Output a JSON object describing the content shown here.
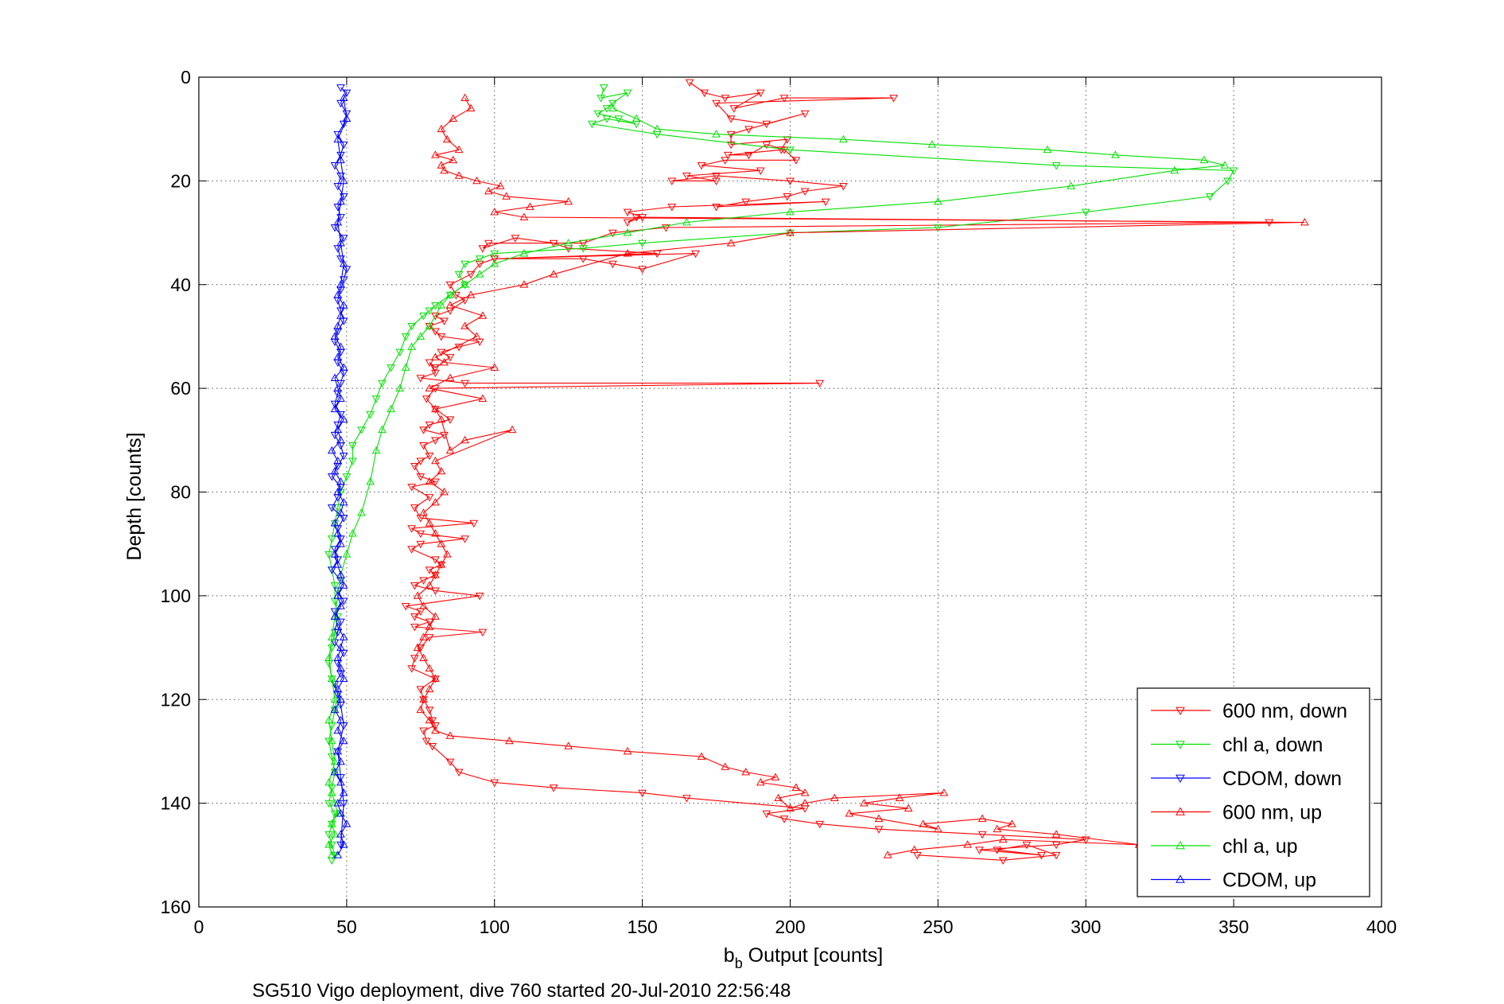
{
  "chart_data": {
    "type": "line",
    "xlabel_main": "b",
    "xlabel_sub": "b",
    "xlabel_rest": " Output [counts]",
    "ylabel": "Depth [counts]",
    "caption": "SG510 Vigo deployment, dive 760 started 20-Jul-2010 22:56:48",
    "xlim": [
      0,
      400
    ],
    "ylim": [
      0,
      160
    ],
    "y_reversed": true,
    "grid": true,
    "legend_position": "bottom-right",
    "x_ticks": [
      "0",
      "50",
      "100",
      "150",
      "200",
      "250",
      "300",
      "350",
      "400"
    ],
    "y_ticks": [
      "0",
      "20",
      "40",
      "60",
      "80",
      "100",
      "120",
      "140",
      "160"
    ],
    "series": [
      {
        "name": "600 nm, down",
        "color": "#ff0000",
        "marker": "triangle-down",
        "x": [
          166,
          171,
          178,
          190,
          181,
          198,
          235,
          175,
          180,
          192,
          205,
          186,
          180,
          180,
          199,
          197,
          179,
          186,
          192,
          198,
          202,
          178,
          170,
          190,
          165,
          175,
          160,
          175,
          200,
          218,
          205,
          199,
          185,
          175,
          212,
          160,
          145,
          150,
          145,
          148,
          362,
          158,
          140,
          130,
          98,
          96,
          107,
          120,
          125,
          155,
          100,
          130,
          140,
          150,
          168,
          100,
          95,
          92,
          85,
          87,
          90,
          85,
          80,
          83,
          78,
          80,
          82,
          95,
          88,
          82,
          85,
          80,
          78,
          80,
          75,
          90,
          210,
          80,
          77,
          80,
          85,
          78,
          76,
          83,
          80,
          76,
          78,
          75,
          73,
          75,
          80,
          72,
          78,
          73,
          75,
          93,
          72,
          75,
          90,
          75,
          72,
          80,
          82,
          78,
          80,
          76,
          73,
          80,
          95,
          70,
          75,
          73,
          78,
          73,
          96,
          78,
          75,
          73,
          72,
          80,
          75,
          76,
          78,
          79,
          80,
          76,
          77,
          79,
          85,
          88,
          100,
          120,
          150,
          165,
          205,
          192,
          198,
          210,
          230,
          265,
          300,
          290,
          264,
          285,
          270,
          280,
          290,
          272,
          243
        ],
        "y": [
          1,
          3,
          4,
          3,
          6,
          4,
          4,
          5,
          8,
          9,
          7,
          10,
          11,
          13,
          12,
          14,
          15,
          15,
          13,
          14,
          16,
          16,
          17,
          18,
          19,
          20,
          20,
          19,
          20,
          21,
          22,
          23,
          24,
          25,
          24,
          25,
          26,
          27,
          28,
          27,
          28,
          29,
          30,
          32,
          32,
          33,
          31,
          32,
          33,
          34,
          35,
          35,
          36,
          37,
          34,
          35,
          36,
          38,
          40,
          42,
          43,
          45,
          46,
          47,
          48,
          49,
          50,
          51,
          52,
          53,
          54,
          56,
          55,
          57,
          58,
          59,
          59,
          60,
          62,
          64,
          66,
          67,
          68,
          69,
          70,
          71,
          73,
          74,
          75,
          77,
          78,
          79,
          81,
          83,
          85,
          86,
          87,
          88,
          89,
          90,
          91,
          93,
          94,
          95,
          96,
          97,
          98,
          99,
          100,
          102,
          103,
          104,
          105,
          106,
          107,
          108,
          110,
          112,
          114,
          116,
          118,
          120,
          122,
          124,
          125,
          126,
          128,
          129,
          132,
          134,
          136,
          137,
          138,
          139,
          141,
          142,
          143,
          144,
          145,
          146,
          147,
          148,
          149,
          150,
          149,
          148,
          150,
          151,
          150
        ]
      },
      {
        "name": "chl a, down",
        "color": "#00e000",
        "marker": "triangle-down",
        "x": [
          137,
          136,
          145,
          140,
          138,
          135,
          142,
          148,
          138,
          133,
          155,
          200,
          290,
          350,
          348,
          342,
          300,
          250,
          200,
          150,
          130,
          100,
          95,
          90,
          88,
          90,
          85,
          80,
          78,
          76,
          72,
          70,
          68,
          65,
          62,
          60,
          58,
          55,
          52,
          52,
          50,
          48,
          47,
          46,
          45,
          44,
          45,
          46,
          46,
          47,
          46,
          45,
          44,
          45,
          47,
          46,
          45,
          44,
          45,
          46,
          45,
          44,
          46,
          45,
          44,
          45,
          46,
          45
        ],
        "y": [
          2,
          4,
          3,
          5,
          6,
          7,
          8,
          9,
          8,
          9,
          11,
          14,
          17,
          18,
          20,
          23,
          26,
          29,
          30,
          32,
          33,
          34,
          35,
          36,
          38,
          40,
          42,
          44,
          45,
          46,
          48,
          50,
          53,
          56,
          59,
          62,
          65,
          68,
          71,
          74,
          77,
          80,
          83,
          86,
          89,
          92,
          95,
          98,
          101,
          104,
          107,
          110,
          113,
          116,
          119,
          122,
          125,
          128,
          131,
          134,
          137,
          140,
          142,
          144,
          146,
          148,
          150,
          151
        ]
      },
      {
        "name": "CDOM, down",
        "color": "#0000ff",
        "marker": "triangle-down",
        "x": [
          48,
          50,
          48,
          50,
          49,
          47,
          49,
          48,
          46,
          48,
          47,
          49,
          47,
          48,
          46,
          49,
          47,
          48,
          50,
          49,
          48,
          47,
          48,
          49,
          47,
          46,
          48,
          47,
          49,
          48,
          47,
          46,
          48,
          47,
          46,
          48,
          49,
          47,
          45,
          48,
          47,
          45,
          49,
          47,
          48,
          46,
          47,
          45,
          48,
          47,
          49,
          46,
          48,
          47,
          46,
          49,
          47,
          48,
          46,
          47,
          48,
          49,
          47,
          48,
          49,
          48
        ],
        "y": [
          2,
          3,
          5,
          7,
          9,
          11,
          13,
          15,
          17,
          19,
          21,
          23,
          25,
          27,
          29,
          31,
          33,
          35,
          37,
          39,
          41,
          43,
          45,
          47,
          49,
          51,
          53,
          55,
          57,
          59,
          61,
          63,
          65,
          67,
          69,
          71,
          73,
          75,
          77,
          79,
          81,
          83,
          85,
          87,
          89,
          91,
          93,
          95,
          97,
          99,
          101,
          103,
          105,
          107,
          109,
          111,
          113,
          115,
          117,
          119,
          121,
          125,
          130,
          135,
          140,
          148
        ]
      },
      {
        "name": "600 nm, up",
        "color": "#ff0000",
        "marker": "triangle-up",
        "x": [
          233,
          242,
          260,
          272,
          318,
          290,
          270,
          275,
          265,
          245,
          250,
          230,
          220,
          240,
          225,
          237,
          252,
          215,
          205,
          200,
          196,
          205,
          202,
          190,
          195,
          185,
          178,
          170,
          145,
          125,
          105,
          85,
          80,
          78,
          75,
          76,
          78,
          80,
          78,
          76,
          74,
          76,
          78,
          80,
          76,
          74,
          78,
          80,
          82,
          84,
          82,
          80,
          78,
          76,
          80,
          83,
          78,
          82,
          80,
          106,
          90,
          85,
          82,
          80,
          96,
          78,
          85,
          100,
          83,
          80,
          94,
          90,
          96,
          85,
          92,
          110,
          120,
          145,
          180,
          200,
          374,
          110,
          100,
          112,
          125,
          104,
          98,
          102,
          94,
          88,
          83,
          82,
          86,
          80,
          88,
          84,
          82,
          86,
          92,
          90
        ],
        "y": [
          150,
          149,
          148,
          147,
          148,
          146,
          145,
          144,
          143,
          144,
          145,
          143,
          142,
          141,
          140,
          139,
          138,
          139,
          140,
          141,
          139,
          138,
          137,
          136,
          135,
          134,
          133,
          131,
          130,
          129,
          128,
          127,
          126,
          124,
          122,
          120,
          118,
          116,
          114,
          112,
          110,
          108,
          106,
          104,
          102,
          100,
          98,
          96,
          94,
          92,
          90,
          88,
          86,
          84,
          82,
          80,
          78,
          76,
          74,
          68,
          70,
          72,
          66,
          64,
          62,
          60,
          58,
          56,
          55,
          54,
          50,
          48,
          46,
          44,
          42,
          40,
          38,
          34,
          32,
          30,
          28,
          27,
          26,
          25,
          24,
          23,
          22,
          21,
          20,
          19,
          18,
          17,
          16,
          15,
          14,
          12,
          10,
          8,
          6,
          4
        ]
      },
      {
        "name": "chl a, up",
        "color": "#00e000",
        "marker": "triangle-up",
        "x": [
          45,
          44,
          46,
          45,
          47,
          46,
          45,
          44,
          46,
          45,
          44,
          46,
          45,
          44,
          45,
          46,
          47,
          48,
          50,
          52,
          55,
          58,
          60,
          62,
          65,
          68,
          70,
          72,
          75,
          78,
          82,
          85,
          90,
          95,
          100,
          110,
          125,
          145,
          165,
          200,
          250,
          295,
          330,
          347,
          340,
          310,
          287,
          248,
          218,
          175,
          155,
          148,
          140
        ],
        "y": [
          150,
          148,
          146,
          144,
          142,
          140,
          138,
          136,
          132,
          128,
          124,
          120,
          116,
          112,
          108,
          104,
          100,
          96,
          92,
          88,
          84,
          78,
          72,
          68,
          64,
          60,
          56,
          52,
          50,
          48,
          44,
          42,
          40,
          38,
          36,
          34,
          32,
          30,
          28,
          26,
          24,
          21,
          18,
          17,
          16,
          15,
          14,
          13,
          12,
          11,
          10,
          8,
          6
        ]
      },
      {
        "name": "CDOM, up",
        "color": "#0000ff",
        "marker": "triangle-up",
        "x": [
          47,
          49,
          48,
          50,
          48,
          47,
          49,
          48,
          46,
          48,
          47,
          49,
          47,
          48,
          46,
          48,
          47,
          49,
          48,
          47,
          48,
          49,
          47,
          46,
          48,
          47,
          49,
          48,
          47,
          46,
          48,
          47,
          46,
          48,
          49,
          47,
          48,
          46,
          47,
          45,
          48,
          47,
          49,
          46,
          48,
          47,
          46,
          49,
          47,
          48,
          46,
          47,
          48,
          49,
          47,
          48,
          49,
          48,
          47,
          48,
          49,
          48,
          47,
          50,
          49
        ],
        "y": [
          150,
          148,
          146,
          144,
          142,
          140,
          138,
          136,
          134,
          132,
          130,
          128,
          126,
          124,
          122,
          120,
          118,
          116,
          114,
          112,
          110,
          108,
          106,
          104,
          102,
          100,
          98,
          96,
          94,
          92,
          90,
          88,
          86,
          84,
          82,
          80,
          78,
          76,
          74,
          72,
          70,
          68,
          66,
          64,
          62,
          60,
          58,
          56,
          54,
          52,
          50,
          48,
          46,
          44,
          42,
          40,
          36,
          32,
          28,
          24,
          20,
          16,
          12,
          8,
          4
        ]
      }
    ]
  }
}
